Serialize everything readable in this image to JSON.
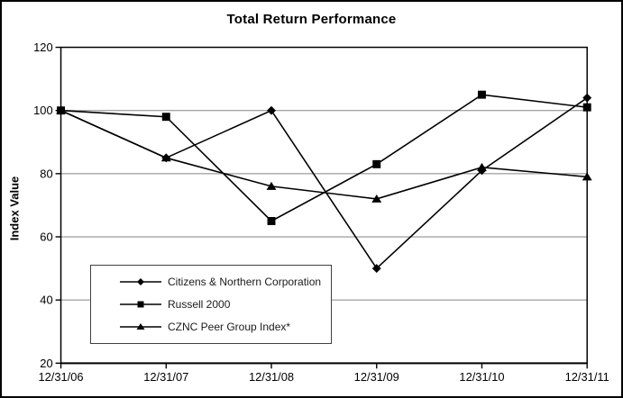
{
  "figure": {
    "title": "Total Return Performance",
    "y_axis_title": "Index Value"
  },
  "chart_data": {
    "type": "line",
    "title": "Total Return Performance",
    "xlabel": "",
    "ylabel": "Index Value",
    "categories": [
      "12/31/06",
      "12/31/07",
      "12/31/08",
      "12/31/09",
      "12/31/10",
      "12/31/11"
    ],
    "series": [
      {
        "name": "Citizens & Northern Corporation",
        "marker": "diamond",
        "values": [
          100,
          85,
          100,
          50,
          81,
          104
        ]
      },
      {
        "name": "Russell 2000",
        "marker": "square",
        "values": [
          100,
          98,
          65,
          83,
          105,
          101
        ]
      },
      {
        "name": "CZNC Peer Group Index*",
        "marker": "triangle",
        "values": [
          100,
          85,
          76,
          72,
          82,
          79
        ]
      }
    ],
    "ylim": [
      20,
      120
    ],
    "yticks": [
      20,
      40,
      60,
      80,
      100,
      120
    ],
    "grid": true,
    "legend_position": "inside-bottom-left",
    "colors": {
      "series": "#000000",
      "gridline": "#a6a6a6",
      "axis": "#000000",
      "background": "#ffffff"
    }
  }
}
